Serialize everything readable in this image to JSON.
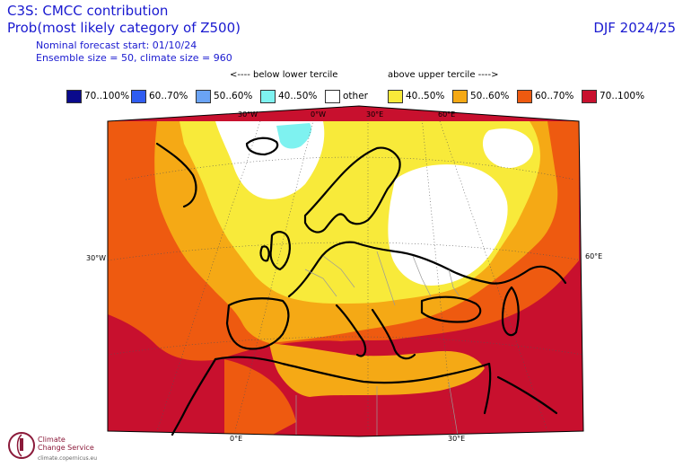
{
  "header": {
    "title_line1": "C3S: CMCC contribution",
    "title_line2": "Prob(most likely category of Z500)",
    "line3": "Nominal forecast start: 01/10/24",
    "line4": "Ensemble size = 50, climate size = 960",
    "season": "DJF 2024/25"
  },
  "tercile_labels": {
    "below": "<---- below lower tercile",
    "above": "above upper tercile ---->"
  },
  "legend": [
    {
      "label": "70..100%",
      "color": "#0a0a8c"
    },
    {
      "label": "60..70%",
      "color": "#2f5cf0"
    },
    {
      "label": "50..60%",
      "color": "#6aa3f5"
    },
    {
      "label": "40..50%",
      "color": "#7ef2f0"
    },
    {
      "label": "other",
      "color": "#ffffff"
    },
    {
      "label": "40..50%",
      "color": "#f8ea3a"
    },
    {
      "label": "50..60%",
      "color": "#f5a915"
    },
    {
      "label": "60..70%",
      "color": "#ee5a10"
    },
    {
      "label": "70..100%",
      "color": "#c8102e"
    }
  ],
  "grid_labels": {
    "top": [
      "30°W",
      "0°W",
      "30°E",
      "60°E"
    ],
    "left": "30°W",
    "right": "60°E",
    "bottom": [
      "0°E",
      "30°E"
    ]
  },
  "logo": {
    "line1": "Climate",
    "line2": "Change Service",
    "url": "climate.copernicus.eu"
  }
}
